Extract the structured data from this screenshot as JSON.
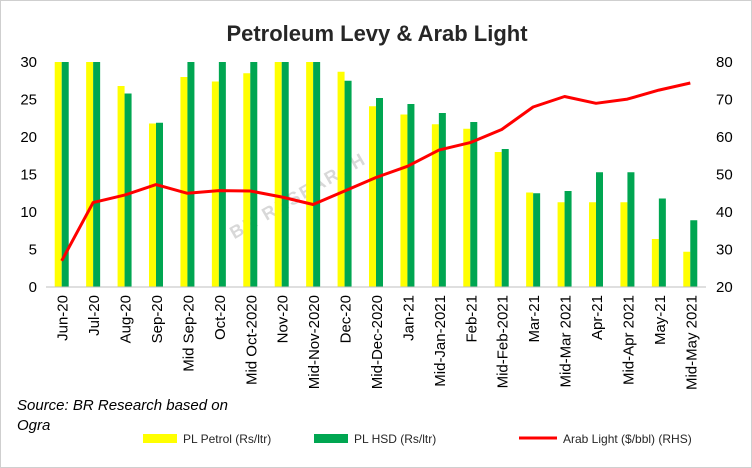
{
  "chart_data": {
    "type": "bar+line",
    "title": "Petroleum Levy & Arab Light",
    "categories": [
      "Jun-20",
      "Jul-20",
      "Aug-20",
      "Sep-20",
      "Mid Sep-20",
      "Oct-20",
      "Mid Oct-2020",
      "Nov-20",
      "Mid-Nov-2020",
      "Dec-20",
      "Mid-Dec-2020",
      "Jan-21",
      "Mid-Jan-2021",
      "Feb-21",
      "Mid-Feb-2021",
      "Mar-21",
      "Mid-Mar 2021",
      "Apr-21",
      "Mid-Apr 2021",
      "May-21",
      "Mid-May 2021"
    ],
    "series": [
      {
        "name": "PL Petrol (Rs/ltr)",
        "type": "bar",
        "axis": "left",
        "color": "#ffff00",
        "values": [
          30,
          30,
          26.8,
          21.8,
          28,
          27.4,
          28.5,
          30,
          30,
          28.7,
          24.1,
          23,
          21.7,
          21.1,
          18,
          12.6,
          11.3,
          11.3,
          11.3,
          6.4,
          4.7
        ]
      },
      {
        "name": "PL HSD (Rs/ltr)",
        "type": "bar",
        "axis": "left",
        "color": "#00a651",
        "values": [
          30,
          30,
          25.8,
          21.9,
          30,
          30,
          30,
          30,
          30,
          27.5,
          25.2,
          24.4,
          23.2,
          22,
          18.4,
          12.5,
          12.8,
          15.3,
          15.3,
          11.8,
          8.9
        ]
      },
      {
        "name": "Arab Light ($/bbl) (RHS)",
        "type": "line",
        "axis": "right",
        "color": "#ff0000",
        "values": [
          27,
          42.5,
          44.5,
          47.3,
          45,
          45.7,
          45.6,
          44,
          42,
          45.6,
          49.2,
          52.2,
          56.5,
          58.5,
          62,
          68,
          70.8,
          69,
          70.1,
          72.5,
          74.4
        ]
      }
    ],
    "y_left": {
      "min": 0,
      "max": 30,
      "ticks": [
        "0",
        "5",
        "10",
        "15",
        "20",
        "25",
        "30"
      ]
    },
    "y_right": {
      "min": 20,
      "max": 80,
      "ticks": [
        "20",
        "30",
        "40",
        "50",
        "60",
        "70",
        "80"
      ]
    },
    "xlabel": "",
    "ylabel": "",
    "legend_position": "bottom-right",
    "grid": false,
    "watermark": "BR RESEARCH"
  },
  "source_note": "Source: BR Research based on Ogra",
  "legend": {
    "petrol": "PL Petrol (Rs/ltr)",
    "hsd": "PL HSD (Rs/ltr)",
    "arab": "Arab Light ($/bbl) (RHS)"
  },
  "colors": {
    "petrol": "#ffff00",
    "hsd": "#00a651",
    "arab": "#ff0000"
  }
}
